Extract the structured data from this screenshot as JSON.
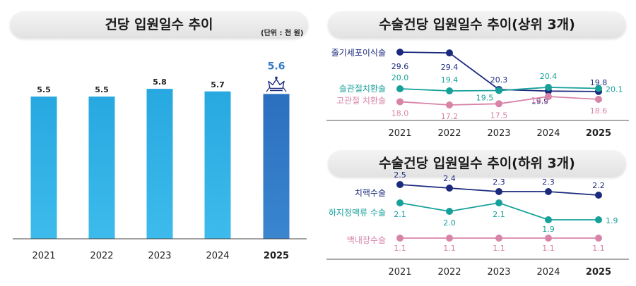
{
  "left_title": "건당 입원일수 추이",
  "left_unit": "(단위 : 천 원)",
  "right_top_title": "수술건당 입원일수 추이(상위 3개)",
  "right_bottom_title": "수술건당 입원일수 추이(하위 3개)",
  "colors": {
    "bar": "#2fb0e4",
    "bar_highlight": "#2f79c5",
    "navy": "#1c2a7d",
    "teal": "#16a09a",
    "pink": "#d884a8"
  },
  "icons": [
    "crown-icon"
  ],
  "chart_data": [
    {
      "type": "bar",
      "title": "건당 입원일수 추이",
      "categories": [
        "2021",
        "2022",
        "2023",
        "2024",
        "2025"
      ],
      "values": [
        5.5,
        5.5,
        5.8,
        5.7,
        5.6
      ],
      "value_labels": [
        "5.5",
        "5.5",
        "5.8",
        "5.7",
        "5.6"
      ],
      "highlight": "2025",
      "ylim": [
        0,
        7
      ]
    },
    {
      "type": "line",
      "title": "수술건당 입원일수 추이(상위 3개)",
      "categories": [
        "2021",
        "2022",
        "2023",
        "2024",
        "2025"
      ],
      "series": [
        {
          "name": "줄기세포이식술",
          "values": [
            29.6,
            29.4,
            20.3,
            19.9,
            19.8
          ],
          "labels": [
            "29.6",
            "29.4",
            "20.3",
            "19.9",
            "19.8"
          ]
        },
        {
          "name": "슬관절치환술",
          "values": [
            20.0,
            19.4,
            19.5,
            20.4,
            20.1
          ],
          "labels": [
            "20.0",
            "19.4",
            "19.5",
            "20.4",
            "20.1"
          ]
        },
        {
          "name": "고관절 치환술",
          "values": [
            18.0,
            17.2,
            17.5,
            19.3,
            18.6
          ],
          "labels": [
            "18.0",
            "17.2",
            "17.5",
            "19.3",
            "18.6"
          ]
        }
      ]
    },
    {
      "type": "line",
      "title": "수술건당 입원일수 추이(하위 3개)",
      "categories": [
        "2021",
        "2022",
        "2023",
        "2024",
        "2025"
      ],
      "series": [
        {
          "name": "치핵수술",
          "values": [
            2.5,
            2.4,
            2.3,
            2.3,
            2.2
          ],
          "labels": [
            "2.5",
            "2.4",
            "2.3",
            "2.3",
            "2.2"
          ]
        },
        {
          "name": "하지정맥류 수술",
          "values": [
            2.1,
            2.0,
            2.1,
            1.9,
            1.9
          ],
          "labels": [
            "2.1",
            "2.0",
            "2.1",
            "1.9",
            "1.9"
          ]
        },
        {
          "name": "백내장수술",
          "values": [
            1.1,
            1.1,
            1.1,
            1.1,
            1.1
          ],
          "labels": [
            "1.1",
            "1.1",
            "1.1",
            "1.1",
            "1.1"
          ]
        }
      ]
    }
  ]
}
